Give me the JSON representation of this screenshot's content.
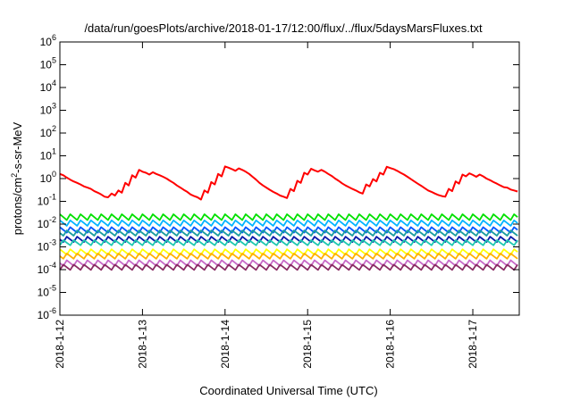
{
  "chart_data": {
    "type": "line",
    "title": "/data/run/goesPlots/archive/2018-01-17/12:00/flux/../flux/5daysMarsFluxes.txt",
    "xlabel": "Coordinated Universal Time (UTC)",
    "ylabel_parts": [
      "protons/cm",
      "2",
      "-s-sr-MeV"
    ],
    "xlim": [
      "2018-01-12T00:00",
      "2018-01-17T13:30"
    ],
    "yscale": "log",
    "ylim": [
      1e-06,
      1000000.0
    ],
    "grid": false,
    "legend": "none",
    "x_ticks": [
      {
        "value": "2018-01-12T00:00",
        "label": "2018-1-12"
      },
      {
        "value": "2018-01-13T00:00",
        "label": "2018-1-13"
      },
      {
        "value": "2018-01-14T00:00",
        "label": "2018-1-14"
      },
      {
        "value": "2018-01-15T00:00",
        "label": "2018-1-15"
      },
      {
        "value": "2018-01-16T00:00",
        "label": "2018-1-16"
      },
      {
        "value": "2018-01-17T00:00",
        "label": "2018-1-17"
      }
    ],
    "y_ticks": [
      {
        "value": 1e-06,
        "base": "10",
        "exp": "-6"
      },
      {
        "value": 1e-05,
        "base": "10",
        "exp": "-5"
      },
      {
        "value": 0.0001,
        "base": "10",
        "exp": "-4"
      },
      {
        "value": 0.001,
        "base": "10",
        "exp": "-3"
      },
      {
        "value": 0.01,
        "base": "10",
        "exp": "-2"
      },
      {
        "value": 0.1,
        "base": "10",
        "exp": "-1"
      },
      {
        "value": 1,
        "base": "10",
        "exp": "0"
      },
      {
        "value": 10,
        "base": "10",
        "exp": "1"
      },
      {
        "value": 100,
        "base": "10",
        "exp": "2"
      },
      {
        "value": 1000,
        "base": "10",
        "exp": "3"
      },
      {
        "value": 10000,
        "base": "10",
        "exp": "4"
      },
      {
        "value": 100000,
        "base": "10",
        "exp": "5"
      },
      {
        "value": 1000000,
        "base": "10",
        "exp": "6"
      }
    ],
    "series": [
      {
        "color": "#ff0000",
        "x": [
          "2018-01-12T00:00",
          "2018-01-12T01:00",
          "2018-01-12T02:00",
          "2018-01-12T03:00",
          "2018-01-12T04:00",
          "2018-01-12T05:00",
          "2018-01-12T06:00",
          "2018-01-12T07:00",
          "2018-01-12T08:00",
          "2018-01-12T09:00",
          "2018-01-12T10:00",
          "2018-01-12T11:00",
          "2018-01-12T12:00",
          "2018-01-12T13:00",
          "2018-01-12T14:00",
          "2018-01-12T15:00",
          "2018-01-12T16:00",
          "2018-01-12T17:00",
          "2018-01-12T18:00",
          "2018-01-12T19:00",
          "2018-01-12T20:00",
          "2018-01-12T21:00",
          "2018-01-12T22:00",
          "2018-01-12T23:00",
          "2018-01-13T00:00",
          "2018-01-13T01:00",
          "2018-01-13T02:00",
          "2018-01-13T03:00",
          "2018-01-13T04:00",
          "2018-01-13T05:00",
          "2018-01-13T06:00",
          "2018-01-13T07:00",
          "2018-01-13T08:00",
          "2018-01-13T09:00",
          "2018-01-13T10:00",
          "2018-01-13T11:00",
          "2018-01-13T12:00",
          "2018-01-13T13:00",
          "2018-01-13T14:00",
          "2018-01-13T15:00",
          "2018-01-13T16:00",
          "2018-01-13T17:00",
          "2018-01-13T18:00",
          "2018-01-13T19:00",
          "2018-01-13T20:00",
          "2018-01-13T21:00",
          "2018-01-13T22:00",
          "2018-01-13T23:00",
          "2018-01-14T00:00",
          "2018-01-14T01:00",
          "2018-01-14T02:00",
          "2018-01-14T03:00",
          "2018-01-14T04:00",
          "2018-01-14T05:00",
          "2018-01-14T06:00",
          "2018-01-14T07:00",
          "2018-01-14T08:00",
          "2018-01-14T09:00",
          "2018-01-14T10:00",
          "2018-01-14T11:00",
          "2018-01-14T12:00",
          "2018-01-14T13:00",
          "2018-01-14T14:00",
          "2018-01-14T15:00",
          "2018-01-14T16:00",
          "2018-01-14T17:00",
          "2018-01-14T18:00",
          "2018-01-14T19:00",
          "2018-01-14T20:00",
          "2018-01-14T21:00",
          "2018-01-14T22:00",
          "2018-01-14T23:00",
          "2018-01-15T00:00",
          "2018-01-15T01:00",
          "2018-01-15T02:00",
          "2018-01-15T03:00",
          "2018-01-15T04:00",
          "2018-01-15T05:00",
          "2018-01-15T06:00",
          "2018-01-15T07:00",
          "2018-01-15T08:00",
          "2018-01-15T09:00",
          "2018-01-15T10:00",
          "2018-01-15T11:00",
          "2018-01-15T12:00",
          "2018-01-15T13:00",
          "2018-01-15T14:00",
          "2018-01-15T15:00",
          "2018-01-15T16:00",
          "2018-01-15T17:00",
          "2018-01-15T18:00",
          "2018-01-15T19:00",
          "2018-01-15T20:00",
          "2018-01-15T21:00",
          "2018-01-15T22:00",
          "2018-01-15T23:00",
          "2018-01-16T00:00",
          "2018-01-16T01:00",
          "2018-01-16T02:00",
          "2018-01-16T03:00",
          "2018-01-16T04:00",
          "2018-01-16T05:00",
          "2018-01-16T06:00",
          "2018-01-16T07:00",
          "2018-01-16T08:00",
          "2018-01-16T09:00",
          "2018-01-16T10:00",
          "2018-01-16T11:00",
          "2018-01-16T12:00",
          "2018-01-16T13:00",
          "2018-01-16T14:00",
          "2018-01-16T15:00",
          "2018-01-16T16:00",
          "2018-01-16T17:00",
          "2018-01-16T18:00",
          "2018-01-16T19:00",
          "2018-01-16T20:00",
          "2018-01-16T21:00",
          "2018-01-16T22:00",
          "2018-01-16T23:00",
          "2018-01-17T00:00",
          "2018-01-17T01:00",
          "2018-01-17T02:00",
          "2018-01-17T03:00",
          "2018-01-17T04:00",
          "2018-01-17T05:00",
          "2018-01-17T06:00",
          "2018-01-17T07:00",
          "2018-01-17T08:00",
          "2018-01-17T09:00",
          "2018-01-17T10:00",
          "2018-01-17T11:00",
          "2018-01-17T12:00",
          "2018-01-17T13:00"
        ],
        "values": [
          1.6,
          1.4,
          1.1,
          0.9,
          0.75,
          0.65,
          0.55,
          0.45,
          0.4,
          0.35,
          0.28,
          0.24,
          0.2,
          0.16,
          0.15,
          0.22,
          0.18,
          0.3,
          0.24,
          0.65,
          0.5,
          1.4,
          1.1,
          2.4,
          2.0,
          1.8,
          1.5,
          1.9,
          1.6,
          1.4,
          1.2,
          1.0,
          0.8,
          0.65,
          0.5,
          0.4,
          0.32,
          0.26,
          0.2,
          0.17,
          0.15,
          0.12,
          0.3,
          0.24,
          0.7,
          0.55,
          1.6,
          1.25,
          3.4,
          3.0,
          2.6,
          2.2,
          2.8,
          2.4,
          2.0,
          1.6,
          1.2,
          0.9,
          0.65,
          0.5,
          0.4,
          0.32,
          0.26,
          0.22,
          0.18,
          0.16,
          0.14,
          0.35,
          0.28,
          0.8,
          0.65,
          1.8,
          1.5,
          2.7,
          2.3,
          2.0,
          2.4,
          2.0,
          1.6,
          1.3,
          1.0,
          0.8,
          0.62,
          0.5,
          0.42,
          0.35,
          0.3,
          0.25,
          0.22,
          0.55,
          0.45,
          0.95,
          0.75,
          1.8,
          1.5,
          3.3,
          2.9,
          2.6,
          2.2,
          1.8,
          1.5,
          1.2,
          0.95,
          0.75,
          0.6,
          0.48,
          0.38,
          0.3,
          0.26,
          0.22,
          0.19,
          0.17,
          0.16,
          0.35,
          0.28,
          0.75,
          0.6,
          1.5,
          1.25,
          1.7,
          1.45,
          1.2,
          1.5,
          1.25,
          1.0,
          0.85,
          0.7,
          0.6,
          0.5,
          0.42,
          0.4,
          0.33,
          0.3,
          0.27
        ]
      },
      {
        "color": "#00e000",
        "base": 0.027,
        "drop": 0.42,
        "phase": 0.0
      },
      {
        "color": "#00b4ff",
        "base": 0.0165,
        "drop": 0.44,
        "phase": 0.15
      },
      {
        "color": "#0058ff",
        "base": 0.0095,
        "drop": 0.43,
        "phase": 0.3
      },
      {
        "color": "#1c9ea0",
        "base": 0.0058,
        "drop": 0.45,
        "phase": 0.45
      },
      {
        "color": "#0a1aa8",
        "base": 0.0035,
        "drop": 0.44,
        "phase": 0.6
      },
      {
        "color": "#20c8b0",
        "base": 0.0021,
        "drop": 0.46,
        "phase": 0.75
      },
      {
        "color": "#ffff00",
        "base": 0.00085,
        "drop": 0.44,
        "phase": 0.1
      },
      {
        "color": "#ffb000",
        "base": 0.00052,
        "drop": 0.45,
        "phase": 0.35
      },
      {
        "color": "#c86ac8",
        "base": 0.00031,
        "drop": 0.43,
        "phase": 0.55
      },
      {
        "color": "#8a2c64",
        "base": 0.000185,
        "drop": 0.45,
        "phase": 0.8
      }
    ]
  }
}
